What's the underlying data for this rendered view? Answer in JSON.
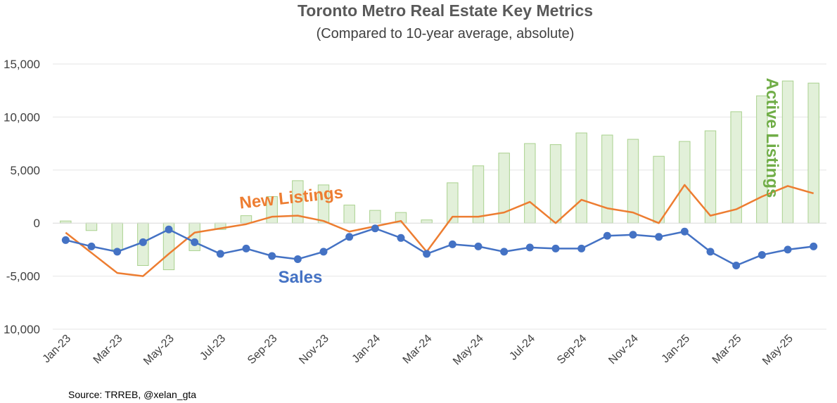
{
  "chart_data": {
    "type": "bar+line",
    "title": "Toronto Metro Real Estate Key Metrics",
    "subtitle": "(Compared to 10-year average, absolute)",
    "source": "Source: TRREB, @xelan_gta",
    "categories": [
      "Jan-23",
      "Feb-23",
      "Mar-23",
      "Apr-23",
      "May-23",
      "Jun-23",
      "Jul-23",
      "Aug-23",
      "Sep-23",
      "Oct-23",
      "Nov-23",
      "Dec-23",
      "Jan-24",
      "Feb-24",
      "Mar-24",
      "Apr-24",
      "May-24",
      "Jun-24",
      "Jul-24",
      "Aug-24",
      "Sep-24",
      "Oct-24",
      "Nov-24",
      "Dec-24",
      "Jan-25",
      "Feb-25",
      "Mar-25",
      "Apr-25",
      "May-25",
      "Jun-25"
    ],
    "x_tick_labels": [
      "Jan-23",
      "Mar-23",
      "May-23",
      "Jul-23",
      "Sep-23",
      "Nov-23",
      "Jan-24",
      "Mar-24",
      "May-24",
      "Jul-24",
      "Sep-24",
      "Nov-24",
      "Jan-25",
      "Mar-25",
      "May-25"
    ],
    "y_tick_labels": [
      "15,000",
      "10,000",
      "5,000",
      "0",
      "-5,000",
      "10,000"
    ],
    "ylim": [
      -10000,
      15000
    ],
    "yticks": [
      15000,
      10000,
      5000,
      0,
      -5000,
      -10000
    ],
    "grid": true,
    "series": [
      {
        "name": "Active Listings",
        "kind": "bar",
        "color": "#a9d18e",
        "fill": "#e2f0d9",
        "values": [
          200,
          -700,
          -2500,
          -4000,
          -4400,
          -2600,
          -600,
          700,
          2500,
          4000,
          3600,
          1700,
          1200,
          1000,
          300,
          3800,
          5400,
          6600,
          7500,
          7400,
          8500,
          8300,
          7900,
          6300,
          7700,
          8700,
          10500,
          12000,
          13400,
          13200
        ]
      },
      {
        "name": "New Listings",
        "kind": "line",
        "color": "#ed7d31",
        "values": [
          -900,
          -2800,
          -4700,
          -5000,
          -2900,
          -900,
          -500,
          -100,
          600,
          700,
          200,
          -800,
          -300,
          200,
          -2700,
          600,
          600,
          1000,
          2000,
          0,
          2200,
          1400,
          1000,
          0,
          3600,
          700,
          1300,
          2500,
          3500,
          2800
        ]
      },
      {
        "name": "Sales",
        "kind": "line-markers",
        "color": "#4472c4",
        "values": [
          -1600,
          -2200,
          -2700,
          -1800,
          -600,
          -1800,
          -2900,
          -2400,
          -3100,
          -3400,
          -2700,
          -1300,
          -500,
          -1400,
          -2900,
          -2000,
          -2200,
          -2700,
          -2300,
          -2400,
          -2400,
          -1200,
          -1100,
          -1300,
          -800,
          -2700,
          -4000,
          -3000,
          -2500,
          -2200
        ]
      }
    ],
    "annotations": {
      "new_listings": "New Listings",
      "sales": "Sales",
      "active_listings": "Active Listings"
    }
  }
}
